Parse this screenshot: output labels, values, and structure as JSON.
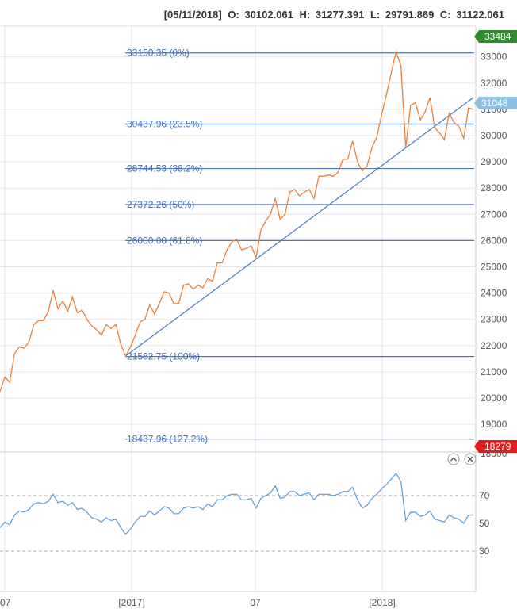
{
  "header": {
    "date": "[05/11/2018]",
    "o_label": "O:",
    "o_value": "30102.061",
    "h_label": "H:",
    "h_value": "31277.391",
    "l_label": "L:",
    "l_value": "29791.869",
    "c_label": "C:",
    "c_value": "31122.061"
  },
  "colors": {
    "price_line": "#e8813a",
    "fib_line": "#4a78c0",
    "fib_label": "#3d6fb6",
    "trend_line": "#4a78c0",
    "rsi_line": "#5b9bd5",
    "rsi_guides": "#aaaaaa",
    "badge_high": "#2e8b2e",
    "badge_current": "#8ec0e6",
    "badge_low": "#e02020",
    "grid": "#e6e6e6"
  },
  "badges": {
    "high": "33484",
    "current": "31048",
    "low": "18279"
  },
  "controls": {
    "collapse_icon": "chevron-up-icon",
    "close_icon": "close-icon"
  },
  "chart_data": [
    {
      "type": "line",
      "panel": "price",
      "title": "",
      "ylim": [
        18000,
        33500
      ],
      "yticks": [
        "19000",
        "20000",
        "21000",
        "22000",
        "23000",
        "24000",
        "25000",
        "26000",
        "27000",
        "28000",
        "29000",
        "30000",
        "31000",
        "32000",
        "33000"
      ],
      "bottom_tick": "18000",
      "x_ticks": [
        "07",
        "[2017]",
        "07",
        "[2018]"
      ],
      "series": [
        {
          "values": [
            20250,
            20800,
            20600,
            21700,
            21950,
            21900,
            22150,
            22800,
            22950,
            22950,
            23300,
            24100,
            23400,
            23700,
            23300,
            23850,
            23250,
            23350,
            23000,
            22750,
            22600,
            22400,
            22800,
            22650,
            22800,
            22050,
            21600,
            21950,
            22400,
            22900,
            23000,
            23550,
            23200,
            23600,
            24050,
            24000,
            23600,
            23600,
            24300,
            24350,
            24150,
            24300,
            24200,
            24550,
            24450,
            25150,
            25150,
            25650,
            25950,
            26050,
            25650,
            25700,
            25800,
            25350,
            26400,
            26750,
            27000,
            27600,
            26800,
            27000,
            27850,
            27950,
            27700,
            27850,
            27950,
            27600,
            28450,
            28450,
            28500,
            28450,
            28600,
            29100,
            29100,
            29800,
            29000,
            28650,
            28850,
            29550,
            29950,
            30800,
            31550,
            32400,
            33200,
            32650,
            29550,
            31150,
            31250,
            30600,
            30900,
            31450,
            30300,
            30100,
            29850,
            30850,
            30500,
            30350,
            29900,
            31050,
            31000
          ]
        }
      ],
      "fibonacci": [
        {
          "value": 33150.35,
          "label": "33150.35 (0%)"
        },
        {
          "value": 30437.96,
          "label": "30437.96 (23.5%)"
        },
        {
          "value": 28744.53,
          "label": "28744.53 (38.2%)"
        },
        {
          "value": 27372.26,
          "label": "27372.26 (50%)"
        },
        {
          "value": 26000.0,
          "label": "26000.00 (61.8%)"
        },
        {
          "value": 21582.75,
          "label": "21582.75 (100%)"
        },
        {
          "value": 18437.96,
          "label": "18437.96 (127.2%)"
        }
      ],
      "trendline": {
        "from": {
          "index": 26,
          "value": 21600
        },
        "to": {
          "index": 98,
          "value": 31450
        }
      }
    },
    {
      "type": "line",
      "panel": "oscillator",
      "title": "",
      "ylim": [
        15,
        95
      ],
      "yticks": [
        "30",
        "50",
        "70"
      ],
      "guides": [
        30,
        70
      ],
      "series": [
        {
          "values": [
            47,
            51,
            49,
            56,
            59,
            58,
            60,
            64,
            65,
            64,
            66,
            71,
            65,
            66,
            63,
            65,
            60,
            61,
            58,
            54,
            53,
            51,
            54,
            52,
            53,
            47,
            42,
            46,
            51,
            55,
            55,
            59,
            56,
            59,
            62,
            61,
            57,
            57,
            61,
            62,
            61,
            62,
            60,
            64,
            62,
            67,
            67,
            70,
            71,
            71,
            67,
            67,
            68,
            61,
            68,
            70,
            72,
            77,
            68,
            69,
            73,
            73,
            70,
            71,
            72,
            67,
            71,
            71,
            71,
            70,
            71,
            73,
            73,
            76,
            67,
            61,
            63,
            68,
            71,
            75,
            78,
            82,
            86,
            80,
            52,
            58,
            58,
            55,
            56,
            59,
            53,
            52,
            51,
            56,
            54,
            53,
            50,
            56,
            56
          ]
        }
      ]
    }
  ]
}
